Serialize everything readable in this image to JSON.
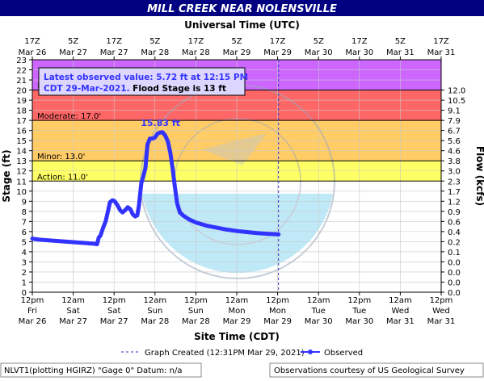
{
  "chart_data": {
    "type": "line",
    "title": "MILL CREEK NEAR NOLENSVILLE",
    "top_axis_title": "Universal Time (UTC)",
    "xlabel": "Site Time (CDT)",
    "ylabel": "Stage (ft)",
    "y2label": "Flow (kcfs)",
    "ylim": [
      0,
      23
    ],
    "y_ticks": [
      0,
      1,
      2,
      3,
      4,
      5,
      6,
      7,
      8,
      9,
      10,
      11,
      12,
      13,
      14,
      15,
      16,
      17,
      18,
      19,
      20,
      21,
      22,
      23
    ],
    "y2_ticks": [
      {
        "stage": 0,
        "label": "0.0"
      },
      {
        "stage": 1,
        "label": "0.0"
      },
      {
        "stage": 2,
        "label": "0.0"
      },
      {
        "stage": 3,
        "label": "0.0"
      },
      {
        "stage": 4,
        "label": "0.1"
      },
      {
        "stage": 5,
        "label": "0.2"
      },
      {
        "stage": 6,
        "label": "0.4"
      },
      {
        "stage": 7,
        "label": "0.6"
      },
      {
        "stage": 8,
        "label": "0.9"
      },
      {
        "stage": 9,
        "label": "1.2"
      },
      {
        "stage": 10,
        "label": "1.7"
      },
      {
        "stage": 11,
        "label": "2.3"
      },
      {
        "stage": 12,
        "label": "3.0"
      },
      {
        "stage": 13,
        "label": "3.8"
      },
      {
        "stage": 14,
        "label": "4.6"
      },
      {
        "stage": 15,
        "label": "5.6"
      },
      {
        "stage": 16,
        "label": "6.7"
      },
      {
        "stage": 17,
        "label": "7.9"
      },
      {
        "stage": 18,
        "label": "9.1"
      },
      {
        "stage": 19,
        "label": "10.5"
      },
      {
        "stage": 20,
        "label": "12.0"
      }
    ],
    "x_range_hours": [
      0,
      120
    ],
    "bottom_ticks": [
      {
        "h": 0,
        "time": "12pm",
        "day": "Fri",
        "date": "Mar 26"
      },
      {
        "h": 12,
        "time": "12am",
        "day": "Sat",
        "date": "Mar 27"
      },
      {
        "h": 24,
        "time": "12pm",
        "day": "Sat",
        "date": "Mar 27"
      },
      {
        "h": 36,
        "time": "12am",
        "day": "Sun",
        "date": "Mar 28"
      },
      {
        "h": 48,
        "time": "12pm",
        "day": "Sun",
        "date": "Mar 28"
      },
      {
        "h": 60,
        "time": "12am",
        "day": "Mon",
        "date": "Mar 29"
      },
      {
        "h": 72,
        "time": "12pm",
        "day": "Mon",
        "date": "Mar 29"
      },
      {
        "h": 84,
        "time": "12am",
        "day": "Tue",
        "date": "Mar 30"
      },
      {
        "h": 96,
        "time": "12pm",
        "day": "Tue",
        "date": "Mar 30"
      },
      {
        "h": 108,
        "time": "12am",
        "day": "Wed",
        "date": "Mar 31"
      },
      {
        "h": 120,
        "time": "12pm",
        "day": "Wed",
        "date": "Mar 31"
      }
    ],
    "top_ticks": [
      {
        "h": 0,
        "time": "17Z",
        "date": "Mar 26"
      },
      {
        "h": 12,
        "time": "5Z",
        "date": "Mar 27"
      },
      {
        "h": 24,
        "time": "17Z",
        "date": "Mar 27"
      },
      {
        "h": 36,
        "time": "5Z",
        "date": "Mar 28"
      },
      {
        "h": 48,
        "time": "17Z",
        "date": "Mar 28"
      },
      {
        "h": 60,
        "time": "5Z",
        "date": "Mar 29"
      },
      {
        "h": 72,
        "time": "17Z",
        "date": "Mar 29"
      },
      {
        "h": 84,
        "time": "5Z",
        "date": "Mar 30"
      },
      {
        "h": 96,
        "time": "17Z",
        "date": "Mar 30"
      },
      {
        "h": 108,
        "time": "5Z",
        "date": "Mar 31"
      },
      {
        "h": 120,
        "time": "17Z",
        "date": "Mar 31"
      }
    ],
    "flood_categories": [
      {
        "name": "Action",
        "label": "Action: 11.0'",
        "from": 11,
        "to": 12,
        "color": "#ffff66"
      },
      {
        "name": "Minor",
        "label": "Minor: 13.0'",
        "from": 13,
        "to": 17,
        "color": "#ffcc66"
      },
      {
        "name": "Moderate",
        "label": "Moderate: 17.0'",
        "from": 17,
        "to": 20,
        "color": "#ff6666"
      },
      {
        "name": "Major",
        "label": "Major: 20.0'",
        "from": 20,
        "to": 23,
        "color": "#cc66ff"
      }
    ],
    "band_below_action_color": "#ffff66",
    "flood_stage": 13,
    "info_box": {
      "line1": "Latest observed value: 5.72 ft at 12:15 PM",
      "line2_a": "CDT 29-Mar-2021.",
      "line2_b": " Flood Stage is 13 ft"
    },
    "peak_label": "15.83 ft",
    "peak": {
      "h": 39.5,
      "stage": 15.83
    },
    "graph_created_h": 72.25,
    "series": [
      {
        "name": "Observed",
        "color": "#3333ff",
        "points": [
          [
            0,
            5.3
          ],
          [
            2,
            5.2
          ],
          [
            4,
            5.15
          ],
          [
            6,
            5.1
          ],
          [
            8,
            5.05
          ],
          [
            10,
            5.0
          ],
          [
            12,
            4.95
          ],
          [
            14,
            4.9
          ],
          [
            16,
            4.85
          ],
          [
            18,
            4.8
          ],
          [
            19,
            4.75
          ],
          [
            19.5,
            5.4
          ],
          [
            20,
            5.6
          ],
          [
            20.8,
            6.4
          ],
          [
            21.5,
            7.0
          ],
          [
            22.2,
            8.0
          ],
          [
            22.8,
            8.9
          ],
          [
            23.5,
            9.1
          ],
          [
            24.2,
            9.0
          ],
          [
            25,
            8.6
          ],
          [
            25.8,
            8.1
          ],
          [
            26.5,
            7.9
          ],
          [
            27.2,
            8.1
          ],
          [
            28,
            8.4
          ],
          [
            28.8,
            8.2
          ],
          [
            29.5,
            7.7
          ],
          [
            30.2,
            7.5
          ],
          [
            30.8,
            7.6
          ],
          [
            31.3,
            8.6
          ],
          [
            32,
            10.8
          ],
          [
            32.6,
            11.5
          ],
          [
            33.2,
            12.3
          ],
          [
            33.8,
            14.6
          ],
          [
            34.5,
            15.2
          ],
          [
            35.2,
            15.2
          ],
          [
            36,
            15.3
          ],
          [
            36.8,
            15.7
          ],
          [
            37.5,
            15.8
          ],
          [
            38.2,
            15.83
          ],
          [
            39,
            15.5
          ],
          [
            39.8,
            14.9
          ],
          [
            40.5,
            13.8
          ],
          [
            41.2,
            12.2
          ],
          [
            41.8,
            10.5
          ],
          [
            42.5,
            8.8
          ],
          [
            43.3,
            7.9
          ],
          [
            44.2,
            7.6
          ],
          [
            46,
            7.2
          ],
          [
            48,
            6.9
          ],
          [
            51,
            6.6
          ],
          [
            54,
            6.4
          ],
          [
            57,
            6.2
          ],
          [
            60,
            6.05
          ],
          [
            63,
            5.95
          ],
          [
            66,
            5.85
          ],
          [
            69,
            5.78
          ],
          [
            72.25,
            5.72
          ]
        ]
      }
    ],
    "legend": {
      "graph_created_label": "Graph Created (12:31PM Mar 29, 2021)",
      "observed_label": "Observed"
    }
  },
  "footer": {
    "left": "NLVT1(plotting HGIRZ) \"Gage 0\" Datum: n/a",
    "right": "Observations courtesy of US Geological Survey"
  },
  "watermark_text": "NATIONAL OCEANIC AND ATMOSPHERIC ADMINISTRATION · U.S. DEPARTMENT OF COMMERCE · NOAA"
}
